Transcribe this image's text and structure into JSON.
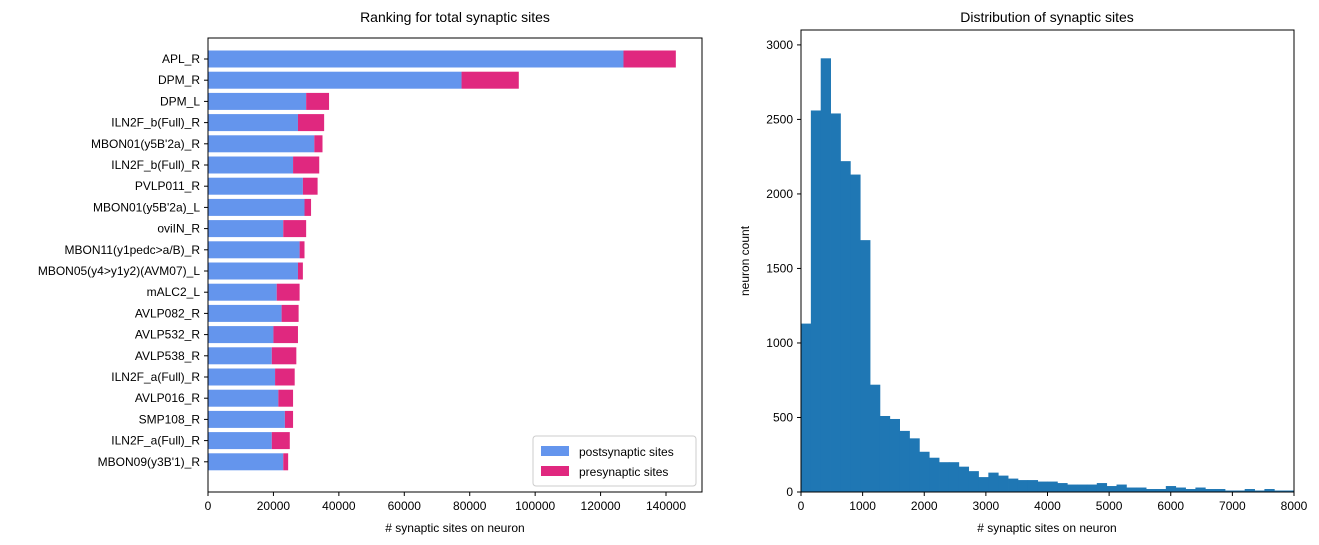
{
  "chart_data": [
    {
      "type": "bar",
      "orientation": "horizontal",
      "stacked": true,
      "title": "Ranking for total synaptic sites",
      "xlabel": "# synaptic sites on neuron",
      "ylabel": "",
      "xlim": [
        0,
        151000
      ],
      "xticks": [
        0,
        20000,
        40000,
        60000,
        80000,
        100000,
        120000,
        140000
      ],
      "xtick_labels": [
        "0",
        "20000",
        "40000",
        "60000",
        "80000",
        "100000",
        "120000",
        "140000"
      ],
      "categories": [
        "APL_R",
        "DPM_R",
        "DPM_L",
        "ILN2F_b(Full)_R",
        "MBON01(y5B'2a)_R",
        "ILN2F_b(Full)_R",
        "PVLP011_R",
        "MBON01(y5B'2a)_L",
        "oviIN_R",
        "MBON11(y1pedc>a/B)_R",
        "MBON05(y4>y1y2)(AVM07)_L",
        "mALC2_L",
        "AVLP082_R",
        "AVLP532_R",
        "AVLP538_R",
        "ILN2F_a(Full)_R",
        "AVLP016_R",
        "SMP108_R",
        "ILN2F_a(Full)_R",
        "MBON09(y3B'1)_R"
      ],
      "series": [
        {
          "name": "postsynaptic sites",
          "color": "#6495ED",
          "values": [
            127000,
            77500,
            30000,
            27500,
            32500,
            26000,
            29000,
            29500,
            23000,
            28000,
            27500,
            21000,
            22500,
            20000,
            19500,
            20500,
            21500,
            23500,
            19500,
            23000
          ]
        },
        {
          "name": "presynaptic sites",
          "color": "#E0287F",
          "values": [
            16000,
            17500,
            7000,
            8000,
            2500,
            8000,
            4500,
            2000,
            7000,
            1500,
            1500,
            7000,
            5200,
            7500,
            7500,
            6000,
            4500,
            2500,
            5500,
            1500
          ]
        }
      ],
      "legend": "lower-right"
    },
    {
      "type": "bar",
      "subtype": "histogram",
      "title": "Distribution of synaptic sites",
      "xlabel": "# synaptic sites on neuron",
      "ylabel": "neuron count",
      "xlim": [
        0,
        8000
      ],
      "ylim": [
        0,
        3100
      ],
      "xticks": [
        0,
        1000,
        2000,
        3000,
        4000,
        5000,
        6000,
        7000,
        8000
      ],
      "yticks": [
        0,
        500,
        1000,
        1500,
        2000,
        2500,
        3000
      ],
      "bin_width": 160,
      "bin_start": 0,
      "color": "#1F77B4",
      "values": [
        1130,
        2560,
        2910,
        2540,
        2220,
        2130,
        1690,
        720,
        510,
        490,
        410,
        360,
        270,
        230,
        200,
        200,
        170,
        140,
        100,
        130,
        110,
        90,
        80,
        80,
        70,
        70,
        60,
        50,
        50,
        50,
        60,
        40,
        50,
        30,
        30,
        20,
        20,
        40,
        30,
        20,
        30,
        20,
        20,
        10,
        10,
        20,
        10,
        20,
        10,
        10
      ]
    }
  ]
}
